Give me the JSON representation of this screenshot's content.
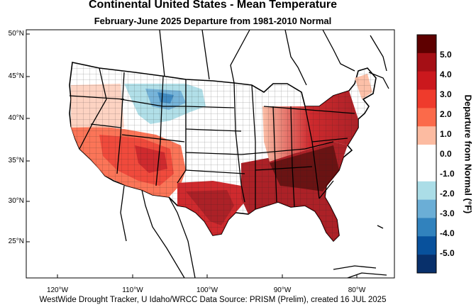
{
  "title": "Continental United States - Mean Temperature",
  "subtitle": "February-June 2025  Departure from 1981-2010 Normal",
  "footer": "WestWide Drought Tracker, U Idaho/WRCC Data Source: PRISM (Prelim), created 16 JUL 2025",
  "lat_labels": [
    "50°N",
    "45°N",
    "40°N",
    "35°N",
    "30°N",
    "25°N"
  ],
  "lon_labels": [
    "120°W",
    "110°W",
    "100°W",
    "90°W",
    "80°W"
  ],
  "colorbar": {
    "title": "Departure from Normal (°F)",
    "labels": [
      "5.0",
      "4.0",
      "3.0",
      "2.0",
      "1.0",
      "0.0",
      "-1.0",
      "-2.0",
      "-3.0",
      "-4.0",
      "-5.0"
    ],
    "colors": [
      "#5e0000",
      "#a50f15",
      "#cb181d",
      "#ef3b2c",
      "#fb6a4a",
      "#fcbba1",
      "#ffffff",
      "#ffffff",
      "#abdde7",
      "#6baed6",
      "#3182bd",
      "#08519c",
      "#08306b"
    ]
  }
}
